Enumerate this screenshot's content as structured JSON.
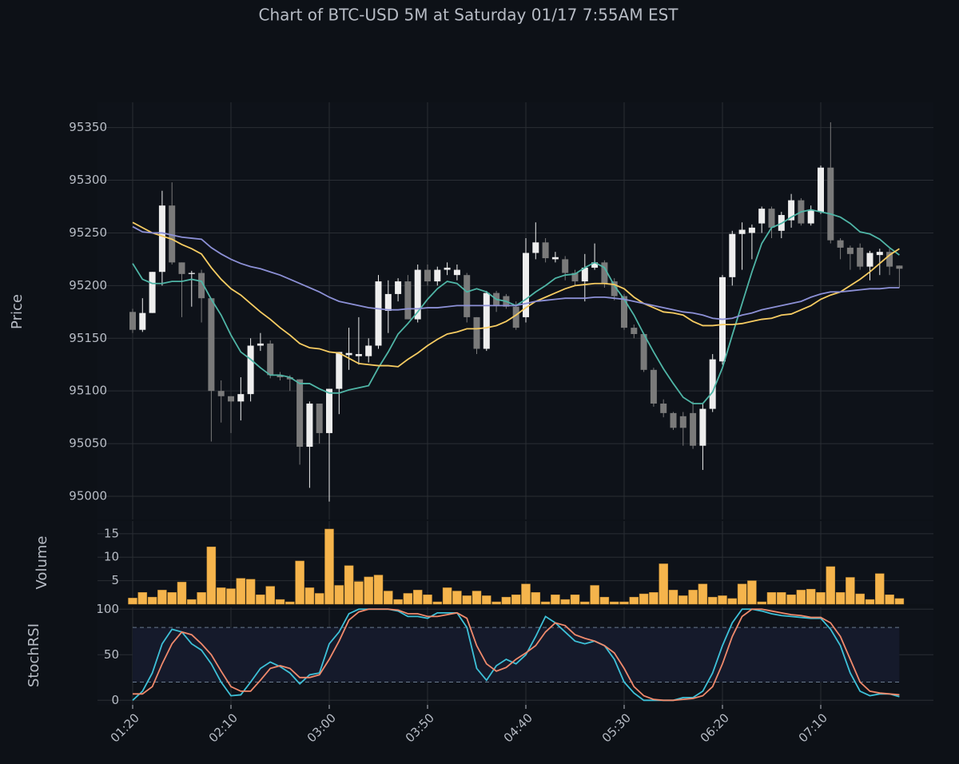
{
  "chart_data": [
    {
      "type": "candlestick",
      "title": "Chart of BTC-USD 5M at Saturday 01/17 7:55AM EST",
      "ylabel": "Price",
      "categories": [
        "01:20",
        null,
        null,
        null,
        null,
        null,
        null,
        null,
        null,
        null,
        "02:10",
        null,
        null,
        null,
        null,
        null,
        null,
        null,
        null,
        null,
        "03:00",
        null,
        null,
        null,
        null,
        null,
        null,
        null,
        null,
        null,
        "03:50",
        null,
        null,
        null,
        null,
        null,
        null,
        null,
        null,
        null,
        "04:40",
        null,
        null,
        null,
        null,
        null,
        null,
        null,
        null,
        null,
        "05:30",
        null,
        null,
        null,
        null,
        null,
        null,
        null,
        null,
        null,
        "06:20",
        null,
        null,
        null,
        null,
        null,
        null,
        null,
        null,
        null,
        "07:10",
        null,
        null,
        null,
        null,
        null,
        null,
        null,
        null
      ],
      "open": [
        95175,
        95158,
        95174,
        95213,
        95276,
        95222,
        95211,
        95212,
        95188,
        95100,
        95095,
        95090,
        95097,
        95143,
        95145,
        95115,
        95113,
        95111,
        95047,
        95088,
        95060,
        95102,
        95134,
        95133,
        95133,
        95143,
        95176,
        95192,
        95204,
        95168,
        95215,
        95204,
        95215,
        95210,
        95210,
        95170,
        95140,
        95193,
        95190,
        95180,
        95170,
        95231,
        95241,
        95225,
        95225,
        95212,
        95204,
        95217,
        95222,
        95204,
        95190,
        95160,
        95154,
        95120,
        95088,
        95079,
        95076,
        95079,
        95048,
        95083,
        95128,
        95208,
        95249,
        95250,
        95259,
        95273,
        95252,
        95262,
        95281,
        95259,
        95270,
        95312,
        95243,
        95236,
        95236,
        95218,
        95229,
        95232,
        95219
      ],
      "high": [
        95178,
        95188,
        95213,
        95290,
        95298,
        95222,
        95214,
        95215,
        95188,
        95110,
        95095,
        95113,
        95150,
        95155,
        95148,
        95118,
        95115,
        95111,
        95090,
        95088,
        95102,
        95137,
        95160,
        95170,
        95150,
        95210,
        95205,
        95207,
        95210,
        95220,
        95220,
        95218,
        95222,
        95220,
        95212,
        95170,
        95195,
        95195,
        95192,
        95185,
        95245,
        95260,
        95245,
        95232,
        95228,
        95215,
        95230,
        95240,
        95224,
        95207,
        95192,
        95163,
        95155,
        95122,
        95092,
        95080,
        95080,
        95090,
        95088,
        95135,
        95210,
        95252,
        95260,
        95258,
        95275,
        95275,
        95270,
        95287,
        95283,
        95276,
        95314,
        95355,
        95245,
        95238,
        95240,
        95233,
        95235,
        95235,
        95219
      ],
      "low": [
        95155,
        95156,
        95174,
        95200,
        95220,
        95170,
        95180,
        95165,
        95052,
        95070,
        95060,
        95072,
        95090,
        95138,
        95112,
        95110,
        95100,
        95030,
        95008,
        95050,
        94995,
        95078,
        95120,
        95125,
        95127,
        95140,
        95155,
        95185,
        95168,
        95165,
        95200,
        95200,
        95210,
        95205,
        95165,
        95135,
        95138,
        95175,
        95178,
        95158,
        95165,
        95225,
        95222,
        95222,
        95205,
        95200,
        95185,
        95215,
        95198,
        95186,
        95158,
        95150,
        95118,
        95085,
        95075,
        95063,
        95048,
        95045,
        95025,
        95080,
        95125,
        95200,
        95215,
        95225,
        95250,
        95245,
        95245,
        95255,
        95257,
        95257,
        95268,
        95240,
        95225,
        95215,
        95215,
        95205,
        95210,
        95210,
        95198
      ],
      "close": [
        95158,
        95174,
        95213,
        95276,
        95222,
        95211,
        95212,
        95188,
        95100,
        95095,
        95090,
        95097,
        95143,
        95145,
        95115,
        95113,
        95111,
        95047,
        95088,
        95060,
        95102,
        95137,
        95136,
        95135,
        95143,
        95204,
        95192,
        95204,
        95168,
        95215,
        95204,
        95215,
        95217,
        95215,
        95170,
        95140,
        95193,
        95181,
        95180,
        95160,
        95231,
        95241,
        95226,
        95227,
        95212,
        95204,
        95217,
        95222,
        95202,
        95190,
        95160,
        95154,
        95120,
        95088,
        95079,
        95065,
        95065,
        95048,
        95083,
        95130,
        95208,
        95249,
        95253,
        95255,
        95273,
        95255,
        95267,
        95281,
        95259,
        95272,
        95312,
        95243,
        95236,
        95230,
        95218,
        95231,
        95232,
        95218,
        95216
      ],
      "up_color": "#eeeeee",
      "down_color": "#7a7a7a",
      "series": [
        {
          "color": "#4fb5a6",
          "values": [
            95221,
            95206,
            95202,
            95202,
            95204,
            95204,
            95206,
            95204,
            95187,
            95172,
            95153,
            95137,
            95130,
            95122,
            95115,
            95115,
            95113,
            95107,
            95107,
            95102,
            95098,
            95098,
            95101,
            95103,
            95105,
            95122,
            95137,
            95154,
            95164,
            95175,
            95187,
            95197,
            95204,
            95202,
            95194,
            95197,
            95194,
            95187,
            95185,
            95181,
            95187,
            95194,
            95200,
            95207,
            95210,
            95211,
            95217,
            95222,
            95217,
            95200,
            95187,
            95172,
            95154,
            95137,
            95121,
            95107,
            95094,
            95088,
            95088,
            95099,
            95122,
            95153,
            95183,
            95213,
            95240,
            95255,
            95259,
            95265,
            95270,
            95272,
            95270,
            95268,
            95265,
            95259,
            95251,
            95249,
            95244,
            95236,
            95229
          ]
        },
        {
          "color": "#f7cc62",
          "values": [
            95260,
            95255,
            95250,
            95247,
            95244,
            95239,
            95235,
            95230,
            95217,
            95206,
            95197,
            95191,
            95183,
            95175,
            95168,
            95160,
            95153,
            95145,
            95141,
            95140,
            95137,
            95136,
            95131,
            95126,
            95125,
            95124,
            95124,
            95123,
            95130,
            95136,
            95143,
            95149,
            95154,
            95156,
            95159,
            95159,
            95160,
            95162,
            95166,
            95172,
            95179,
            95185,
            95189,
            95193,
            95197,
            95200,
            95201,
            95202,
            95202,
            95201,
            95197,
            95189,
            95183,
            95179,
            95175,
            95174,
            95172,
            95166,
            95162,
            95162,
            95163,
            95163,
            95164,
            95166,
            95168,
            95169,
            95172,
            95173,
            95177,
            95181,
            95187,
            95191,
            95194,
            95200,
            95206,
            95213,
            95221,
            95229,
            95235
          ]
        },
        {
          "color": "#8c90d6",
          "values": [
            95256,
            95251,
            95250,
            95250,
            95248,
            95246,
            95245,
            95244,
            95236,
            95230,
            95225,
            95221,
            95218,
            95216,
            95213,
            95210,
            95206,
            95202,
            95198,
            95194,
            95189,
            95185,
            95183,
            95181,
            95179,
            95178,
            95177,
            95177,
            95178,
            95178,
            95179,
            95179,
            95180,
            95181,
            95181,
            95181,
            95181,
            95181,
            95181,
            95181,
            95183,
            95185,
            95186,
            95187,
            95188,
            95188,
            95188,
            95189,
            95189,
            95188,
            95187,
            95185,
            95183,
            95181,
            95179,
            95177,
            95175,
            95174,
            95172,
            95169,
            95168,
            95169,
            95172,
            95174,
            95177,
            95179,
            95181,
            95183,
            95185,
            95189,
            95192,
            95194,
            95194,
            95195,
            95196,
            95197,
            95197,
            95198,
            95198
          ]
        }
      ],
      "ylim": [
        94978,
        95374
      ],
      "yticks": [
        95000,
        95050,
        95100,
        95150,
        95200,
        95250,
        95300,
        95350
      ],
      "grid": true
    },
    {
      "type": "bar",
      "ylabel": "Volume",
      "color": "#f5b44c",
      "values": [
        1.3,
        2.5,
        1.5,
        3,
        2.5,
        4.7,
        1,
        2.5,
        12.2,
        3.5,
        3.3,
        5.5,
        5.3,
        2,
        3.8,
        1,
        0.5,
        9.2,
        3.5,
        2.3,
        16,
        4,
        8.2,
        4.8,
        5.8,
        6.2,
        2.8,
        1,
        2.3,
        3,
        2,
        0.5,
        3.5,
        2.8,
        1.8,
        2.8,
        1.8,
        0.5,
        1.5,
        2,
        4.3,
        2.5,
        0.5,
        2,
        1,
        2,
        0.5,
        4,
        1.5,
        0.5,
        0.5,
        1.5,
        2.2,
        2.5,
        8.6,
        3,
        1.8,
        3,
        4.3,
        1.5,
        1.8,
        1.2,
        4.3,
        5,
        0.5,
        2.5,
        2.5,
        2,
        3,
        3.2,
        2.5,
        8,
        2.5,
        5.7,
        2.2,
        1,
        6.5,
        2,
        1.2
      ],
      "ylim": [
        0,
        17.7
      ],
      "yticks": [
        5,
        10,
        15
      ],
      "grid": true
    },
    {
      "type": "line",
      "ylabel": "StochRSI",
      "band": [
        20,
        80
      ],
      "band_color": "#151a2b",
      "band_line_color": "#6a7a8e",
      "series": [
        {
          "color": "#3ec1d8",
          "values": [
            0,
            10,
            30,
            62,
            78,
            75,
            62,
            55,
            40,
            20,
            5,
            6,
            20,
            35,
            42,
            37,
            30,
            18,
            28,
            30,
            62,
            75,
            95,
            100,
            100,
            100,
            100,
            98,
            92,
            92,
            90,
            96,
            96,
            96,
            80,
            35,
            22,
            38,
            45,
            40,
            50,
            70,
            92,
            85,
            75,
            65,
            62,
            65,
            60,
            45,
            20,
            8,
            0,
            0,
            0,
            0,
            3,
            3,
            10,
            30,
            60,
            85,
            100,
            100,
            98,
            95,
            93,
            92,
            91,
            90,
            90,
            78,
            60,
            30,
            10,
            5,
            7,
            7,
            4
          ]
        },
        {
          "color": "#f08a6c",
          "values": [
            7,
            7,
            15,
            40,
            62,
            75,
            72,
            62,
            50,
            32,
            15,
            10,
            10,
            22,
            35,
            38,
            35,
            25,
            25,
            28,
            45,
            65,
            88,
            97,
            100,
            100,
            100,
            99,
            95,
            95,
            92,
            92,
            94,
            96,
            90,
            60,
            40,
            32,
            36,
            45,
            52,
            60,
            75,
            85,
            82,
            72,
            68,
            65,
            60,
            52,
            35,
            15,
            5,
            1,
            0,
            0,
            1,
            2,
            5,
            15,
            40,
            70,
            92,
            100,
            100,
            98,
            96,
            94,
            93,
            91,
            91,
            85,
            70,
            45,
            20,
            10,
            8,
            7,
            6
          ]
        }
      ],
      "ylim": [
        -5,
        102
      ],
      "yticks": [
        0,
        50,
        100
      ],
      "grid": true
    }
  ]
}
